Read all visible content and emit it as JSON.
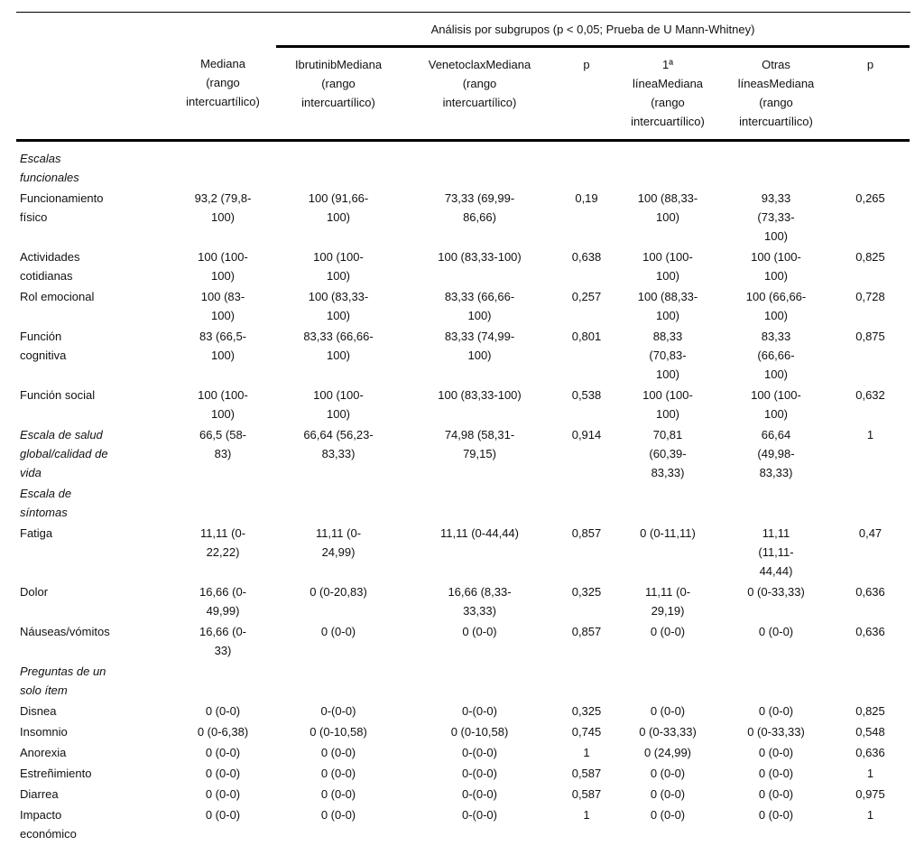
{
  "table": {
    "subgroup_header": "Análisis por subgrupos (p < 0,05; Prueba de U Mann-Whitney)",
    "columns": [
      "",
      "Mediana\n(rango\nintercuartílico)",
      "IbrutinibMediana\n(rango\nintercuartílico)",
      "VenetoclaxMediana\n(rango\nintercuartílico)",
      "p",
      "1ª\nlíneaMediana\n(rango\nintercuartílico)",
      "Otras\nlíneasMediana\n(rango\nintercuartílico)",
      "p"
    ],
    "rows": [
      {
        "type": "section",
        "label": "Escalas\nfuncionales"
      },
      {
        "type": "data",
        "label": "Funcionamiento\nfísico",
        "italic": false,
        "cells": [
          "93,2 (79,8-\n100)",
          "100 (91,66-\n100)",
          "73,33 (69,99-\n86,66)",
          "0,19",
          "100 (88,33-\n100)",
          "93,33\n(73,33-\n100)",
          "0,265"
        ]
      },
      {
        "type": "data",
        "label": "Actividades\ncotidianas",
        "italic": false,
        "cells": [
          "100 (100-\n100)",
          "100 (100-\n100)",
          "100 (83,33-100)",
          "0,638",
          "100 (100-\n100)",
          "100 (100-\n100)",
          "0,825"
        ]
      },
      {
        "type": "data",
        "label": "Rol emocional",
        "italic": false,
        "cells": [
          "100 (83-\n100)",
          "100 (83,33-\n100)",
          "83,33 (66,66-\n100)",
          "0,257",
          "100 (88,33-\n100)",
          "100 (66,66-\n100)",
          "0,728"
        ]
      },
      {
        "type": "data",
        "label": "Función\ncognitiva",
        "italic": false,
        "cells": [
          "83 (66,5-\n100)",
          "83,33 (66,66-\n100)",
          "83,33 (74,99-\n100)",
          "0,801",
          "88,33\n(70,83-\n100)",
          "83,33\n(66,66-\n100)",
          "0,875"
        ]
      },
      {
        "type": "data",
        "label": "Función social",
        "italic": false,
        "cells": [
          "100 (100-\n100)",
          "100 (100-\n100)",
          "100 (83,33-100)",
          "0,538",
          "100 (100-\n100)",
          "100 (100-\n100)",
          "0,632"
        ]
      },
      {
        "type": "data",
        "label": "Escala de salud\nglobal/calidad de\nvida",
        "italic": true,
        "cells": [
          "66,5 (58-\n83)",
          "66,64 (56,23-\n83,33)",
          "74,98 (58,31-\n79,15)",
          "0,914",
          "70,81\n(60,39-\n83,33)",
          "66,64\n(49,98-\n83,33)",
          "1"
        ]
      },
      {
        "type": "section",
        "label": "Escala de\nsíntomas"
      },
      {
        "type": "data",
        "label": "Fatiga",
        "italic": false,
        "cells": [
          "11,11 (0-\n22,22)",
          "11,11 (0-\n24,99)",
          "11,11 (0-44,44)",
          "0,857",
          "0 (0-11,11)",
          "11,11\n(11,11-\n44,44)",
          "0,47"
        ]
      },
      {
        "type": "data",
        "label": "Dolor",
        "italic": false,
        "cells": [
          "16,66 (0-\n49,99)",
          "0 (0-20,83)",
          "16,66 (8,33-\n33,33)",
          "0,325",
          "11,11 (0-\n29,19)",
          "0 (0-33,33)",
          "0,636"
        ]
      },
      {
        "type": "data",
        "label": "Náuseas/vómitos",
        "italic": false,
        "cells": [
          "16,66 (0-\n33)",
          "0 (0-0)",
          "0 (0-0)",
          "0,857",
          "0 (0-0)",
          "0 (0-0)",
          "0,636"
        ]
      },
      {
        "type": "section",
        "label": "Preguntas de un\nsolo ítem"
      },
      {
        "type": "data",
        "label": "Disnea",
        "italic": false,
        "cells": [
          "0 (0-0)",
          "0-(0-0)",
          "0-(0-0)",
          "0,325",
          "0 (0-0)",
          "0 (0-0)",
          "0,825"
        ]
      },
      {
        "type": "data",
        "label": "Insomnio",
        "italic": false,
        "cells": [
          "0 (0-6,38)",
          "0 (0-10,58)",
          "0 (0-10,58)",
          "0,745",
          "0 (0-33,33)",
          "0 (0-33,33)",
          "0,548"
        ]
      },
      {
        "type": "data",
        "label": "Anorexia",
        "italic": false,
        "cells": [
          "0 (0-0)",
          "0 (0-0)",
          "0-(0-0)",
          "1",
          "0 (24,99)",
          "0 (0-0)",
          "0,636"
        ]
      },
      {
        "type": "data",
        "label": "Estreñimiento",
        "italic": false,
        "cells": [
          "0 (0-0)",
          "0 (0-0)",
          "0-(0-0)",
          "0,587",
          "0 (0-0)",
          "0 (0-0)",
          "1"
        ]
      },
      {
        "type": "data",
        "label": "Diarrea",
        "italic": false,
        "cells": [
          "0 (0-0)",
          "0 (0-0)",
          "0-(0-0)",
          "0,587",
          "0 (0-0)",
          "0 (0-0)",
          "0,975"
        ]
      },
      {
        "type": "data",
        "label": "Impacto\neconómico",
        "italic": false,
        "cells": [
          "0 (0-0)",
          "0 (0-0)",
          "0-(0-0)",
          "1",
          "0 (0-0)",
          "0 (0-0)",
          "1"
        ]
      }
    ]
  }
}
